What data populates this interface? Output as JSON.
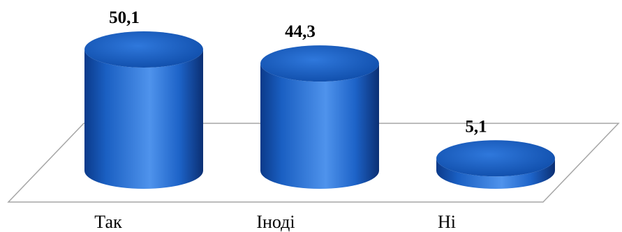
{
  "chart_data": {
    "type": "bar",
    "style": "3d-cylinder",
    "categories": [
      "Так",
      "Іноді",
      "Ні"
    ],
    "values": [
      50.1,
      44.3,
      5.1
    ],
    "value_labels": [
      "50,1",
      "44,3",
      "5,1"
    ],
    "ylim": [
      0,
      60
    ],
    "grid": false,
    "legend": "none",
    "colors": {
      "bar_main": "#1a5fc2",
      "bar_dark": "#0b2f73",
      "bar_light": "#4f93ec",
      "floor_line": "#a6a6a6"
    }
  }
}
